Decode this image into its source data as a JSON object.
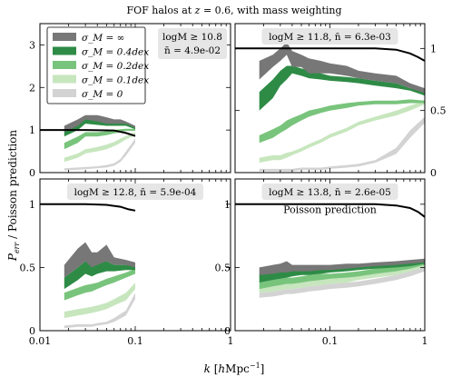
{
  "figure": {
    "suptitle": "FOF halos at z = 0.6, with mass weighting",
    "ylabel": "P_err / Poisson prediction",
    "xlabel": "k [hMpc⁻¹]",
    "poisson_label": "Poisson prediction",
    "colors": {
      "inf": "#777777",
      "0.4dex": "#2e8b46",
      "0.2dex": "#79c47c",
      "0.1dex": "#c7e6be",
      "0": "#d3d3d3",
      "poisson": "#111111",
      "annotation_bg": "#e6e6e6"
    }
  },
  "legend": [
    {
      "key": "inf",
      "label": "σ_M = ∞"
    },
    {
      "key": "0.4dex",
      "label": "σ_M = 0.4dex"
    },
    {
      "key": "0.2dex",
      "label": "σ_M = 0.2dex"
    },
    {
      "key": "0.1dex",
      "label": "σ_M = 0.1dex"
    },
    {
      "key": "0",
      "label": "σ_M = 0"
    }
  ],
  "chart_data": [
    {
      "type": "area",
      "panel": "top-left",
      "annotation": [
        "logM ≥ 10.8",
        "n̄ = 4.9e-02"
      ],
      "xscale": "log",
      "xlim": [
        0.01,
        1
      ],
      "ylim": [
        0,
        3.5
      ],
      "yticks": [
        0,
        1,
        2,
        3
      ],
      "xticks": [],
      "poisson": {
        "x": [
          0.01,
          0.03,
          0.06,
          0.08,
          0.1
        ],
        "y": [
          1.0,
          1.0,
          0.99,
          0.93,
          0.86
        ]
      },
      "x": [
        0.018,
        0.025,
        0.03,
        0.04,
        0.05,
        0.06,
        0.07,
        0.08,
        0.1
      ],
      "series": [
        {
          "key": "inf",
          "lower": [
            0.95,
            1.1,
            1.25,
            1.2,
            1.15,
            1.15,
            1.15,
            1.15,
            1.05
          ],
          "upper": [
            1.1,
            1.25,
            1.35,
            1.35,
            1.3,
            1.25,
            1.25,
            1.2,
            1.1
          ]
        },
        {
          "key": "0.4dex",
          "lower": [
            0.85,
            1.0,
            1.15,
            1.12,
            1.1,
            1.1,
            1.1,
            1.1,
            1.02
          ],
          "upper": [
            1.0,
            1.15,
            1.25,
            1.25,
            1.2,
            1.18,
            1.18,
            1.15,
            1.08
          ]
        },
        {
          "key": "0.2dex",
          "lower": [
            0.55,
            0.7,
            0.85,
            0.85,
            0.88,
            0.92,
            0.95,
            0.98,
            0.98
          ],
          "upper": [
            0.7,
            0.85,
            0.95,
            0.95,
            0.97,
            1.0,
            1.02,
            1.03,
            1.03
          ]
        },
        {
          "key": "0.1dex",
          "lower": [
            0.25,
            0.35,
            0.45,
            0.5,
            0.55,
            0.62,
            0.7,
            0.78,
            0.88
          ],
          "upper": [
            0.35,
            0.45,
            0.55,
            0.6,
            0.66,
            0.72,
            0.8,
            0.86,
            0.95
          ]
        },
        {
          "key": "0",
          "lower": [
            0.05,
            0.07,
            0.08,
            0.1,
            0.12,
            0.16,
            0.25,
            0.4,
            0.7
          ],
          "upper": [
            0.1,
            0.12,
            0.13,
            0.15,
            0.18,
            0.22,
            0.32,
            0.5,
            0.8
          ]
        }
      ]
    },
    {
      "type": "area",
      "panel": "top-right",
      "annotation": [
        "logM ≥ 11.8,  n̄ = 6.3e-03"
      ],
      "xscale": "log",
      "xlim": [
        0.01,
        1
      ],
      "ylim": [
        0,
        1.2
      ],
      "yticks": [
        0,
        0.5,
        1
      ],
      "xticks": [],
      "poisson": {
        "x": [
          0.01,
          0.3,
          0.5,
          0.7,
          0.85,
          1.0
        ],
        "y": [
          1.0,
          1.0,
          0.99,
          0.96,
          0.93,
          0.9
        ]
      },
      "x": [
        0.018,
        0.025,
        0.03,
        0.035,
        0.04,
        0.05,
        0.06,
        0.08,
        0.1,
        0.15,
        0.2,
        0.3,
        0.5,
        0.7,
        1.0
      ],
      "series": [
        {
          "key": "inf",
          "lower": [
            0.75,
            0.85,
            0.9,
            0.95,
            0.85,
            0.85,
            0.8,
            0.8,
            0.8,
            0.78,
            0.76,
            0.74,
            0.72,
            0.68,
            0.64
          ],
          "upper": [
            0.9,
            0.95,
            1.0,
            1.05,
            0.98,
            0.95,
            0.92,
            0.9,
            0.88,
            0.86,
            0.82,
            0.8,
            0.78,
            0.72,
            0.68
          ]
        },
        {
          "key": "0.4dex",
          "lower": [
            0.5,
            0.6,
            0.7,
            0.75,
            0.8,
            0.78,
            0.76,
            0.75,
            0.74,
            0.73,
            0.72,
            0.7,
            0.68,
            0.66,
            0.62
          ],
          "upper": [
            0.65,
            0.75,
            0.82,
            0.86,
            0.86,
            0.84,
            0.82,
            0.8,
            0.78,
            0.77,
            0.76,
            0.74,
            0.72,
            0.68,
            0.65
          ]
        },
        {
          "key": "0.2dex",
          "lower": [
            0.24,
            0.28,
            0.32,
            0.35,
            0.38,
            0.42,
            0.45,
            0.48,
            0.5,
            0.52,
            0.54,
            0.55,
            0.55,
            0.56,
            0.56
          ],
          "upper": [
            0.3,
            0.35,
            0.38,
            0.42,
            0.44,
            0.47,
            0.5,
            0.52,
            0.54,
            0.56,
            0.57,
            0.58,
            0.58,
            0.59,
            0.58
          ]
        },
        {
          "key": "0.1dex",
          "lower": [
            0.08,
            0.1,
            0.1,
            0.12,
            0.14,
            0.17,
            0.2,
            0.24,
            0.28,
            0.33,
            0.38,
            0.42,
            0.46,
            0.5,
            0.55
          ],
          "upper": [
            0.12,
            0.14,
            0.14,
            0.16,
            0.17,
            0.2,
            0.23,
            0.27,
            0.31,
            0.36,
            0.41,
            0.45,
            0.5,
            0.54,
            0.58
          ]
        },
        {
          "key": "0",
          "lower": [
            0.01,
            0.01,
            0.01,
            0.01,
            0.01,
            0.02,
            0.02,
            0.02,
            0.03,
            0.04,
            0.05,
            0.08,
            0.15,
            0.28,
            0.4
          ],
          "upper": [
            0.03,
            0.03,
            0.03,
            0.03,
            0.03,
            0.04,
            0.04,
            0.04,
            0.05,
            0.06,
            0.07,
            0.1,
            0.2,
            0.34,
            0.45
          ]
        }
      ]
    },
    {
      "type": "area",
      "panel": "bottom-left",
      "annotation": [
        "logM ≥ 12.8,  n̄ = 5.9e-04"
      ],
      "xscale": "log",
      "xlim": [
        0.01,
        1
      ],
      "ylim": [
        0,
        1.2
      ],
      "yticks": [
        0,
        0.5,
        1
      ],
      "xticks": [
        0.01,
        0.1,
        1
      ],
      "poisson": {
        "x": [
          0.01,
          0.03,
          0.05,
          0.07,
          0.085,
          0.1
        ],
        "y": [
          1.0,
          1.0,
          0.995,
          0.98,
          0.96,
          0.95
        ]
      },
      "x": [
        0.018,
        0.025,
        0.03,
        0.035,
        0.04,
        0.05,
        0.06,
        0.08,
        0.1
      ],
      "series": [
        {
          "key": "inf",
          "lower": [
            0.42,
            0.5,
            0.55,
            0.5,
            0.52,
            0.55,
            0.52,
            0.52,
            0.5
          ],
          "upper": [
            0.52,
            0.65,
            0.7,
            0.62,
            0.62,
            0.68,
            0.58,
            0.56,
            0.54
          ]
        },
        {
          "key": "0.4dex",
          "lower": [
            0.33,
            0.4,
            0.45,
            0.43,
            0.45,
            0.47,
            0.47,
            0.48,
            0.48
          ],
          "upper": [
            0.42,
            0.5,
            0.55,
            0.52,
            0.54,
            0.55,
            0.52,
            0.52,
            0.52
          ]
        },
        {
          "key": "0.2dex",
          "lower": [
            0.24,
            0.28,
            0.3,
            0.31,
            0.33,
            0.36,
            0.38,
            0.42,
            0.45
          ],
          "upper": [
            0.3,
            0.34,
            0.36,
            0.37,
            0.38,
            0.41,
            0.43,
            0.46,
            0.49
          ]
        },
        {
          "key": "0.1dex",
          "lower": [
            0.1,
            0.12,
            0.13,
            0.14,
            0.15,
            0.17,
            0.2,
            0.24,
            0.33
          ],
          "upper": [
            0.15,
            0.17,
            0.18,
            0.19,
            0.2,
            0.22,
            0.25,
            0.3,
            0.38
          ]
        },
        {
          "key": "0",
          "lower": [
            0.02,
            0.03,
            0.03,
            0.03,
            0.04,
            0.05,
            0.07,
            0.12,
            0.25
          ],
          "upper": [
            0.04,
            0.05,
            0.05,
            0.05,
            0.06,
            0.07,
            0.1,
            0.16,
            0.3
          ]
        }
      ]
    },
    {
      "type": "area",
      "panel": "bottom-right",
      "annotation": [
        "logM ≥ 13.8,  n̄ = 2.6e-05"
      ],
      "xscale": "log",
      "xlim": [
        0.01,
        1
      ],
      "ylim": [
        0,
        1.2
      ],
      "yticks": [
        0,
        0.5,
        1
      ],
      "xticks": [
        0.1,
        1
      ],
      "poisson": {
        "x": [
          0.01,
          0.3,
          0.5,
          0.7,
          0.85,
          1.0
        ],
        "y": [
          1.0,
          1.0,
          0.99,
          0.97,
          0.94,
          0.9
        ]
      },
      "x": [
        0.018,
        0.025,
        0.03,
        0.035,
        0.04,
        0.05,
        0.06,
        0.08,
        0.1,
        0.15,
        0.2,
        0.3,
        0.5,
        0.7,
        1.0
      ],
      "series": [
        {
          "key": "inf",
          "lower": [
            0.44,
            0.45,
            0.46,
            0.46,
            0.47,
            0.47,
            0.47,
            0.48,
            0.48,
            0.49,
            0.5,
            0.51,
            0.52,
            0.53,
            0.54
          ],
          "upper": [
            0.5,
            0.52,
            0.53,
            0.55,
            0.52,
            0.52,
            0.52,
            0.52,
            0.52,
            0.53,
            0.53,
            0.54,
            0.55,
            0.56,
            0.57
          ]
        },
        {
          "key": "0.4dex",
          "lower": [
            0.38,
            0.4,
            0.41,
            0.42,
            0.43,
            0.44,
            0.44,
            0.45,
            0.46,
            0.47,
            0.48,
            0.49,
            0.5,
            0.51,
            0.53
          ],
          "upper": [
            0.45,
            0.47,
            0.48,
            0.49,
            0.48,
            0.48,
            0.48,
            0.49,
            0.49,
            0.5,
            0.51,
            0.52,
            0.53,
            0.54,
            0.55
          ]
        },
        {
          "key": "0.2dex",
          "lower": [
            0.33,
            0.35,
            0.36,
            0.37,
            0.37,
            0.38,
            0.39,
            0.4,
            0.41,
            0.42,
            0.43,
            0.45,
            0.47,
            0.49,
            0.52
          ],
          "upper": [
            0.38,
            0.4,
            0.41,
            0.42,
            0.42,
            0.43,
            0.44,
            0.45,
            0.45,
            0.46,
            0.47,
            0.49,
            0.51,
            0.52,
            0.55
          ]
        },
        {
          "key": "0.1dex",
          "lower": [
            0.3,
            0.31,
            0.32,
            0.33,
            0.33,
            0.34,
            0.35,
            0.36,
            0.37,
            0.38,
            0.4,
            0.42,
            0.44,
            0.47,
            0.5
          ],
          "upper": [
            0.34,
            0.35,
            0.36,
            0.37,
            0.37,
            0.38,
            0.39,
            0.4,
            0.41,
            0.42,
            0.44,
            0.46,
            0.48,
            0.5,
            0.53
          ]
        },
        {
          "key": "0",
          "lower": [
            0.26,
            0.27,
            0.28,
            0.29,
            0.29,
            0.3,
            0.31,
            0.32,
            0.33,
            0.34,
            0.35,
            0.37,
            0.4,
            0.43,
            0.47
          ],
          "upper": [
            0.3,
            0.31,
            0.32,
            0.33,
            0.33,
            0.34,
            0.35,
            0.36,
            0.37,
            0.38,
            0.39,
            0.41,
            0.44,
            0.47,
            0.51
          ]
        }
      ]
    }
  ]
}
